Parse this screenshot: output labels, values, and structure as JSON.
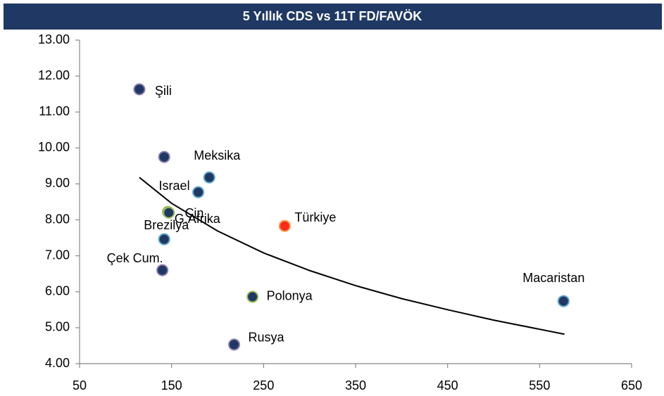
{
  "chart_data": {
    "type": "scatter",
    "title": "5 Yıllık CDS vs 11T FD/FAVÖK",
    "x": [
      115,
      142,
      191,
      179,
      146,
      147,
      142,
      140,
      273,
      238,
      218,
      576
    ],
    "values": [
      11.63,
      9.75,
      9.18,
      8.77,
      8.22,
      8.2,
      7.46,
      6.6,
      7.83,
      5.86,
      4.53,
      5.74
    ],
    "labels": [
      "Şili",
      null,
      "Meksika",
      "Israel",
      "Çin",
      "G.Afrika",
      "Brezilya",
      "Çek Cum.",
      "Türkiye",
      "Polonya",
      "Rusya",
      "Macaristan"
    ],
    "colors": [
      "#1f3864",
      "#1f3864",
      "#1f3864",
      "#1f3864",
      "#1f3864",
      "#1f3864",
      "#1f3864",
      "#1f3864",
      "#ff2a1a",
      "#1f3864",
      "#1f3864",
      "#1f3864"
    ],
    "trendline": {
      "color": "#000000",
      "x": [
        115,
        150,
        200,
        250,
        300,
        350,
        400,
        450,
        500,
        577
      ],
      "values": [
        9.18,
        8.46,
        7.69,
        7.08,
        6.59,
        6.17,
        5.81,
        5.5,
        5.21,
        4.82
      ]
    },
    "xlim": [
      50,
      650
    ],
    "xticks": [
      50,
      150,
      250,
      350,
      450,
      550,
      650
    ],
    "ylim": [
      4,
      13
    ],
    "yticks": [
      {
        "value": 4,
        "label": "4.00"
      },
      {
        "value": 5,
        "label": "5.00"
      },
      {
        "value": 6,
        "label": "6.00"
      },
      {
        "value": 7,
        "label": "7.00"
      },
      {
        "value": 8,
        "label": "8.00"
      },
      {
        "value": 9,
        "label": "9.00"
      },
      {
        "value": 10,
        "label": "10.00"
      },
      {
        "value": 11,
        "label": "11.00"
      },
      {
        "value": 12,
        "label": "12.00"
      },
      {
        "value": 13,
        "label": "13.00"
      }
    ]
  }
}
